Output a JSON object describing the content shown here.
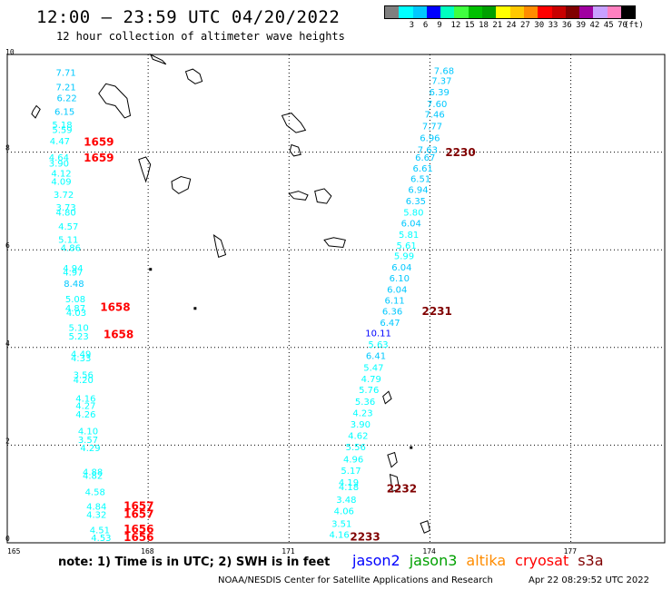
{
  "header": {
    "title": "12:00 – 23:59 UTC 04/20/2022",
    "subtitle": "12 hour collection of altimeter wave heights"
  },
  "legend": {
    "unit": "(ft)",
    "colors": [
      "#808080",
      "#00ffff",
      "#00c8ff",
      "#0000ff",
      "#00ffc0",
      "#40ff40",
      "#00c000",
      "#00a000",
      "#ffff00",
      "#ffc800",
      "#ff8c00",
      "#ff0000",
      "#c80000",
      "#800000",
      "#a000a0",
      "#c8a0ff",
      "#ff80c0",
      "#000000"
    ],
    "labels": [
      "3",
      "6",
      "9",
      "12",
      "15",
      "18",
      "21",
      "24",
      "27",
      "30",
      "33",
      "36",
      "39",
      "42",
      "45",
      "70"
    ]
  },
  "axes": {
    "x_ticks": [
      "165",
      "168",
      "171",
      "174",
      "177"
    ],
    "y_ticks": [
      "0",
      "2",
      "4",
      "6",
      "8",
      "10"
    ]
  },
  "swh_points": [
    {
      "v": "7.71",
      "lon": 166.25,
      "lat": 9.62
    },
    {
      "v": "7.21",
      "lon": 166.25,
      "lat": 9.32
    },
    {
      "v": "6.22",
      "lon": 166.27,
      "lat": 9.1
    },
    {
      "v": "6.15",
      "lon": 166.22,
      "lat": 8.82
    },
    {
      "v": "5.18",
      "lon": 166.17,
      "lat": 8.55
    },
    {
      "v": "5.59",
      "lon": 166.17,
      "lat": 8.45
    },
    {
      "v": "4.47",
      "lon": 166.12,
      "lat": 8.22
    },
    {
      "v": "4.64",
      "lon": 166.1,
      "lat": 7.88
    },
    {
      "v": "3.90",
      "lon": 166.1,
      "lat": 7.76
    },
    {
      "v": "4.12",
      "lon": 166.15,
      "lat": 7.56
    },
    {
      "v": "4.09",
      "lon": 166.15,
      "lat": 7.39
    },
    {
      "v": "3.72",
      "lon": 166.2,
      "lat": 7.12
    },
    {
      "v": "3.73",
      "lon": 166.25,
      "lat": 6.86
    },
    {
      "v": "4.80",
      "lon": 166.25,
      "lat": 6.76
    },
    {
      "v": "4.57",
      "lon": 166.3,
      "lat": 6.47
    },
    {
      "v": "5.11",
      "lon": 166.3,
      "lat": 6.2
    },
    {
      "v": "4.86",
      "lon": 166.35,
      "lat": 6.03
    },
    {
      "v": "4.94",
      "lon": 166.4,
      "lat": 5.61
    },
    {
      "v": "4.97",
      "lon": 166.4,
      "lat": 5.53
    },
    {
      "v": "8.48",
      "lon": 166.42,
      "lat": 5.3
    },
    {
      "v": "5.08",
      "lon": 166.45,
      "lat": 4.98
    },
    {
      "v": "4.87",
      "lon": 166.45,
      "lat": 4.8
    },
    {
      "v": "4.03",
      "lon": 166.47,
      "lat": 4.7
    },
    {
      "v": "5.10",
      "lon": 166.52,
      "lat": 4.4
    },
    {
      "v": "5.23",
      "lon": 166.52,
      "lat": 4.22
    },
    {
      "v": "4.49",
      "lon": 166.57,
      "lat": 3.86
    },
    {
      "v": "4.33",
      "lon": 166.57,
      "lat": 3.77
    },
    {
      "v": "3.56",
      "lon": 166.62,
      "lat": 3.43
    },
    {
      "v": "4.20",
      "lon": 166.62,
      "lat": 3.33
    },
    {
      "v": "4.16",
      "lon": 166.67,
      "lat": 2.95
    },
    {
      "v": "4.27",
      "lon": 166.67,
      "lat": 2.8
    },
    {
      "v": "4.26",
      "lon": 166.67,
      "lat": 2.62
    },
    {
      "v": "4.10",
      "lon": 166.72,
      "lat": 2.28
    },
    {
      "v": "3.57",
      "lon": 166.72,
      "lat": 2.1
    },
    {
      "v": "4.29",
      "lon": 166.77,
      "lat": 1.93
    },
    {
      "v": "4.88",
      "lon": 166.82,
      "lat": 1.44
    },
    {
      "v": "4.82",
      "lon": 166.82,
      "lat": 1.37
    },
    {
      "v": "4.58",
      "lon": 166.87,
      "lat": 1.03
    },
    {
      "v": "4.84",
      "lon": 166.9,
      "lat": 0.73
    },
    {
      "v": "4.32",
      "lon": 166.9,
      "lat": 0.57
    },
    {
      "v": "4.51",
      "lon": 166.97,
      "lat": 0.25
    },
    {
      "v": "4.53",
      "lon": 167.0,
      "lat": 0.09
    },
    {
      "v": "7.68",
      "lon": 174.3,
      "lat": 9.66
    },
    {
      "v": "7.37",
      "lon": 174.25,
      "lat": 9.45
    },
    {
      "v": "6.39",
      "lon": 174.2,
      "lat": 9.22
    },
    {
      "v": "7.60",
      "lon": 174.15,
      "lat": 8.98
    },
    {
      "v": "7.46",
      "lon": 174.1,
      "lat": 8.76
    },
    {
      "v": "7.77",
      "lon": 174.05,
      "lat": 8.52
    },
    {
      "v": "6.96",
      "lon": 174.0,
      "lat": 8.28
    },
    {
      "v": "7.63",
      "lon": 173.95,
      "lat": 8.04
    },
    {
      "v": "6.67",
      "lon": 173.9,
      "lat": 7.88
    },
    {
      "v": "6.61",
      "lon": 173.85,
      "lat": 7.66
    },
    {
      "v": "6.51",
      "lon": 173.8,
      "lat": 7.44
    },
    {
      "v": "6.94",
      "lon": 173.75,
      "lat": 7.22
    },
    {
      "v": "6.35",
      "lon": 173.7,
      "lat": 6.99
    },
    {
      "v": "5.80",
      "lon": 173.65,
      "lat": 6.76
    },
    {
      "v": "6.04",
      "lon": 173.6,
      "lat": 6.53
    },
    {
      "v": "5.81",
      "lon": 173.55,
      "lat": 6.3
    },
    {
      "v": "5.61",
      "lon": 173.5,
      "lat": 6.08
    },
    {
      "v": "5.99",
      "lon": 173.45,
      "lat": 5.86
    },
    {
      "v": "6.04",
      "lon": 173.4,
      "lat": 5.63
    },
    {
      "v": "6.10",
      "lon": 173.35,
      "lat": 5.41
    },
    {
      "v": "6.04",
      "lon": 173.3,
      "lat": 5.18
    },
    {
      "v": "6.11",
      "lon": 173.25,
      "lat": 4.95
    },
    {
      "v": "6.36",
      "lon": 173.2,
      "lat": 4.73
    },
    {
      "v": "6.47",
      "lon": 173.15,
      "lat": 4.5
    },
    {
      "v": "10.11",
      "lon": 172.9,
      "lat": 4.28
    },
    {
      "v": "5.63",
      "lon": 172.9,
      "lat": 4.05
    },
    {
      "v": "6.41",
      "lon": 172.85,
      "lat": 3.82
    },
    {
      "v": "5.47",
      "lon": 172.8,
      "lat": 3.58
    },
    {
      "v": "4.79",
      "lon": 172.75,
      "lat": 3.35
    },
    {
      "v": "5.76",
      "lon": 172.7,
      "lat": 3.12
    },
    {
      "v": "5.36",
      "lon": 172.62,
      "lat": 2.88
    },
    {
      "v": "4.23",
      "lon": 172.57,
      "lat": 2.65
    },
    {
      "v": "3.90",
      "lon": 172.52,
      "lat": 2.42
    },
    {
      "v": "4.62",
      "lon": 172.47,
      "lat": 2.18
    },
    {
      "v": "5.56",
      "lon": 172.42,
      "lat": 1.95
    },
    {
      "v": "4.96",
      "lon": 172.37,
      "lat": 1.7
    },
    {
      "v": "5.17",
      "lon": 172.32,
      "lat": 1.47
    },
    {
      "v": "4.19",
      "lon": 172.27,
      "lat": 1.23
    },
    {
      "v": "4.18",
      "lon": 172.27,
      "lat": 1.13
    },
    {
      "v": "3.48",
      "lon": 172.22,
      "lat": 0.87
    },
    {
      "v": "4.06",
      "lon": 172.17,
      "lat": 0.64
    },
    {
      "v": "3.51",
      "lon": 172.12,
      "lat": 0.38
    },
    {
      "v": "4.16",
      "lon": 172.07,
      "lat": 0.16
    }
  ],
  "time_labels": [
    {
      "t": "1659",
      "lon": 166.95,
      "lat": 8.2,
      "c": "#ff0000"
    },
    {
      "t": "1659",
      "lon": 166.95,
      "lat": 7.87,
      "c": "#ff0000"
    },
    {
      "t": "1658",
      "lon": 167.3,
      "lat": 4.81,
      "c": "#ff0000"
    },
    {
      "t": "1658",
      "lon": 167.37,
      "lat": 4.26,
      "c": "#ff0000"
    },
    {
      "t": "1657",
      "lon": 167.8,
      "lat": 0.74,
      "c": "#ff0000"
    },
    {
      "t": "1657",
      "lon": 167.8,
      "lat": 0.58,
      "c": "#ff0000"
    },
    {
      "t": "1656",
      "lon": 167.8,
      "lat": 0.27,
      "c": "#ff0000"
    },
    {
      "t": "1656",
      "lon": 167.8,
      "lat": 0.1,
      "c": "#ff0000"
    },
    {
      "t": "2230",
      "lon": 174.65,
      "lat": 7.98,
      "c": "#800000"
    },
    {
      "t": "2231",
      "lon": 174.15,
      "lat": 4.73,
      "c": "#800000"
    },
    {
      "t": "2232",
      "lon": 173.4,
      "lat": 1.1,
      "c": "#800000"
    },
    {
      "t": "2233",
      "lon": 172.62,
      "lat": 0.11,
      "c": "#800000"
    }
  ],
  "islands": [
    [
      [
        165.55,
        8.85
      ],
      [
        165.62,
        8.95
      ],
      [
        165.7,
        8.88
      ],
      [
        165.6,
        8.7
      ],
      [
        165.52,
        8.78
      ]
    ],
    [
      [
        166.95,
        9.2
      ],
      [
        167.1,
        9.4
      ],
      [
        167.3,
        9.35
      ],
      [
        167.55,
        9.1
      ],
      [
        167.62,
        8.75
      ],
      [
        167.5,
        8.7
      ],
      [
        167.3,
        8.95
      ],
      [
        167.1,
        9.0
      ]
    ],
    [
      [
        168.05,
        10.0
      ],
      [
        168.15,
        9.95
      ],
      [
        168.3,
        9.88
      ],
      [
        168.38,
        9.8
      ],
      [
        168.25,
        9.85
      ],
      [
        168.1,
        9.9
      ]
    ],
    [
      [
        168.8,
        9.65
      ],
      [
        168.95,
        9.7
      ],
      [
        169.1,
        9.6
      ],
      [
        169.15,
        9.45
      ],
      [
        169.0,
        9.4
      ],
      [
        168.85,
        9.5
      ]
    ],
    [
      [
        167.8,
        7.85
      ],
      [
        167.95,
        7.9
      ],
      [
        168.05,
        7.75
      ],
      [
        168.0,
        7.55
      ],
      [
        167.95,
        7.4
      ],
      [
        167.88,
        7.6
      ]
    ],
    [
      [
        168.5,
        7.4
      ],
      [
        168.7,
        7.5
      ],
      [
        168.9,
        7.45
      ],
      [
        168.85,
        7.25
      ],
      [
        168.65,
        7.15
      ],
      [
        168.52,
        7.25
      ]
    ],
    [
      [
        170.85,
        8.75
      ],
      [
        171.05,
        8.8
      ],
      [
        171.25,
        8.6
      ],
      [
        171.35,
        8.45
      ],
      [
        171.15,
        8.4
      ],
      [
        170.95,
        8.55
      ]
    ],
    [
      [
        171.05,
        8.15
      ],
      [
        171.2,
        8.1
      ],
      [
        171.25,
        7.95
      ],
      [
        171.1,
        7.92
      ],
      [
        171.02,
        8.02
      ]
    ],
    [
      [
        171.0,
        7.15
      ],
      [
        171.2,
        7.2
      ],
      [
        171.4,
        7.12
      ],
      [
        171.35,
        7.02
      ],
      [
        171.1,
        7.05
      ]
    ],
    [
      [
        171.55,
        7.2
      ],
      [
        171.75,
        7.25
      ],
      [
        171.9,
        7.1
      ],
      [
        171.8,
        6.95
      ],
      [
        171.6,
        6.98
      ]
    ],
    [
      [
        169.4,
        6.3
      ],
      [
        169.55,
        6.2
      ],
      [
        169.65,
        5.9
      ],
      [
        169.5,
        5.85
      ],
      [
        169.45,
        6.05
      ]
    ],
    [
      [
        171.75,
        6.2
      ],
      [
        171.95,
        6.25
      ],
      [
        172.2,
        6.2
      ],
      [
        172.15,
        6.05
      ],
      [
        171.85,
        6.08
      ]
    ],
    [
      [
        173.0,
        3.0
      ],
      [
        173.12,
        3.1
      ],
      [
        173.18,
        2.95
      ],
      [
        173.05,
        2.85
      ]
    ],
    [
      [
        173.1,
        1.8
      ],
      [
        173.25,
        1.85
      ],
      [
        173.3,
        1.65
      ],
      [
        173.18,
        1.55
      ]
    ],
    [
      [
        173.15,
        1.4
      ],
      [
        173.3,
        1.35
      ],
      [
        173.35,
        1.1
      ],
      [
        173.2,
        1.05
      ]
    ],
    [
      [
        173.8,
        0.4
      ],
      [
        173.95,
        0.45
      ],
      [
        174.0,
        0.25
      ],
      [
        173.88,
        0.2
      ]
    ]
  ],
  "small_islands": [
    [
      168.05,
      5.6
    ],
    [
      169.0,
      4.8
    ],
    [
      173.6,
      1.95
    ]
  ],
  "note": "note:  1) Time is in UTC;  2) SWH is in feet",
  "missions": [
    {
      "name": "jason2",
      "color": "#0000ff"
    },
    {
      "name": "jason3",
      "color": "#00a000"
    },
    {
      "name": "altika",
      "color": "#ff8c00"
    },
    {
      "name": "cryosat",
      "color": "#ff0000"
    },
    {
      "name": "s3a",
      "color": "#800000"
    }
  ],
  "footer": {
    "credit": "NOAA/NESDIS Center for Satellite Applications and Research",
    "timestamp": "Apr 22 08:29:52 UTC 2022"
  }
}
